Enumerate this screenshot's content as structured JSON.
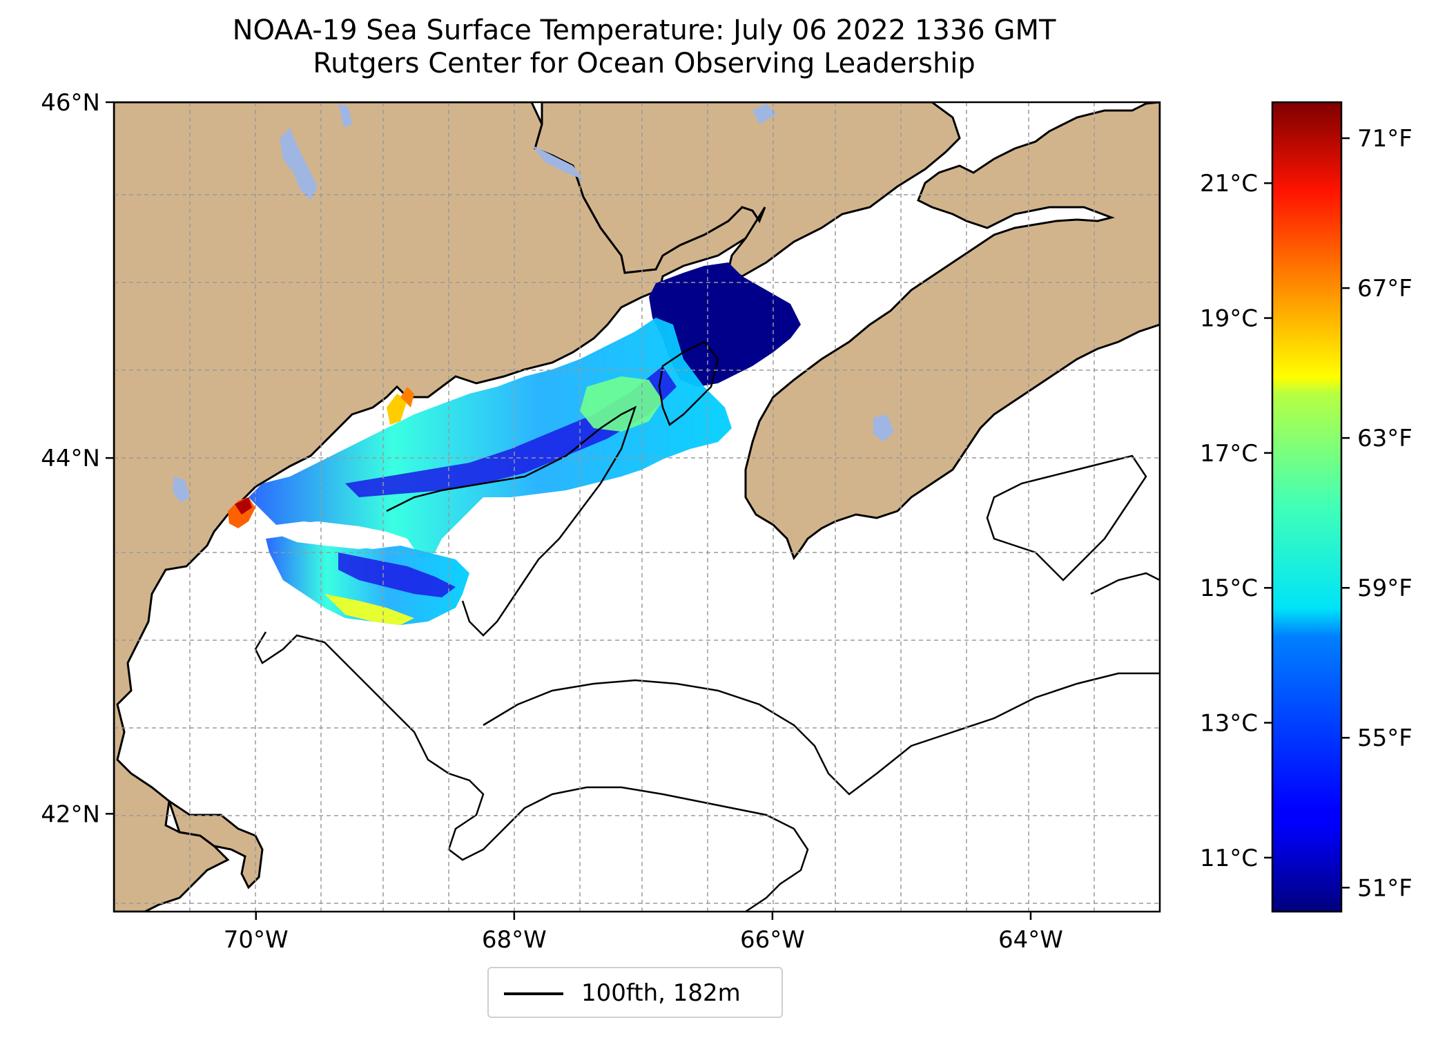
{
  "title": {
    "line1": "NOAA-19 Sea Surface Temperature: July 06 2022 1336 GMT",
    "line2": "Rutgers Center for Ocean Observing Leadership"
  },
  "map": {
    "lon_range": [
      -71.1,
      -63.0
    ],
    "lat_range": [
      41.45,
      46.0
    ],
    "lat_ticks": [
      {
        "value": 46,
        "label": "46°N"
      },
      {
        "value": 44,
        "label": "44°N"
      },
      {
        "value": 42,
        "label": "42°N"
      }
    ],
    "lon_ticks": [
      {
        "value": -70,
        "label": "70°W"
      },
      {
        "value": -68,
        "label": "68°W"
      },
      {
        "value": -66,
        "label": "66°W"
      },
      {
        "value": -64,
        "label": "64°W"
      }
    ],
    "gridlines": "dashed gray, every 0.5°",
    "colors": {
      "land": "#d2b48c",
      "lakes": "#9fb6e3",
      "ocean_no_data": "#ffffff",
      "coastline": "#000000"
    },
    "sst_coverage": "Gulf of Maine and Bay of Fundy; cold (~50°F) in Bay of Fundy, warm (70°F+) along Maine coast near Portland"
  },
  "colorbar": {
    "colormap": "jet",
    "celsius_range": [
      10.2,
      22.2
    ],
    "celsius_ticks": [
      {
        "value": 21,
        "label": "21°C"
      },
      {
        "value": 19,
        "label": "19°C"
      },
      {
        "value": 17,
        "label": "17°C"
      },
      {
        "value": 15,
        "label": "15°C"
      },
      {
        "value": 13,
        "label": "13°C"
      },
      {
        "value": 11,
        "label": "11°C"
      }
    ],
    "fahrenheit_ticks": [
      {
        "value": 71,
        "label": "71°F"
      },
      {
        "value": 67,
        "label": "67°F"
      },
      {
        "value": 63,
        "label": "63°F"
      },
      {
        "value": 59,
        "label": "59°F"
      },
      {
        "value": 55,
        "label": "55°F"
      },
      {
        "value": 51,
        "label": "51°F"
      }
    ]
  },
  "legend": {
    "label": "100fth, 182m",
    "line_color": "#000000"
  }
}
